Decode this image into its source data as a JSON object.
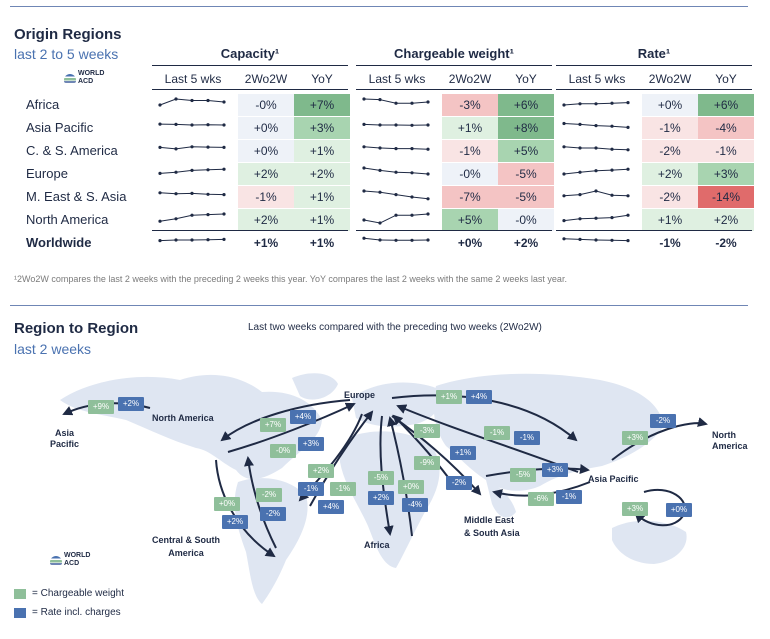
{
  "top": {
    "title": "Origin Regions",
    "subtitle": "last 2 to 5 weeks",
    "logo_text": [
      "WORLD",
      "ACD"
    ]
  },
  "chart_data": [
    {
      "type": "table",
      "groups": [
        "Capacity¹",
        "Chargeable weight¹",
        "Rate¹"
      ],
      "columns": [
        "Last 5 wks",
        "2Wo2W",
        "YoY"
      ],
      "rows": [
        {
          "region": "Africa",
          "capacity": {
            "spark": [
              3,
              5,
              4.5,
              4.5,
              4
            ],
            "wow": "-0%",
            "yoy": "+7%"
          },
          "weight": {
            "spark": [
              5,
              4.8,
              3.6,
              3.6,
              4
            ],
            "wow": "-3%",
            "yoy": "+6%"
          },
          "rate": {
            "spark": [
              3,
              3.4,
              3.4,
              3.6,
              3.8
            ],
            "wow": "+0%",
            "yoy": "+6%"
          }
        },
        {
          "region": "Asia Pacific",
          "capacity": {
            "spark": [
              4.3,
              4.2,
              4,
              4.1,
              4
            ],
            "wow": "+0%",
            "yoy": "+3%"
          },
          "weight": {
            "spark": [
              4.2,
              4,
              4,
              3.9,
              4
            ],
            "wow": "+1%",
            "yoy": "+8%"
          },
          "rate": {
            "spark": [
              4.5,
              4.2,
              3.8,
              3.6,
              3.2
            ],
            "wow": "-1%",
            "yoy": "-4%"
          }
        },
        {
          "region": "C. & S. America",
          "capacity": {
            "spark": [
              4.2,
              3.7,
              4.4,
              4.3,
              4.2
            ],
            "wow": "+0%",
            "yoy": "+1%"
          },
          "weight": {
            "spark": [
              4.4,
              4,
              3.8,
              3.8,
              3.6
            ],
            "wow": "-1%",
            "yoy": "+5%"
          },
          "rate": {
            "spark": [
              4.4,
              4,
              4,
              3.6,
              3.4
            ],
            "wow": "-2%",
            "yoy": "-1%"
          }
        },
        {
          "region": "Europe",
          "capacity": {
            "spark": [
              3.2,
              3.6,
              4.2,
              4.4,
              4.6
            ],
            "wow": "+2%",
            "yoy": "+2%"
          },
          "weight": {
            "spark": [
              5,
              4.2,
              3.6,
              3.4,
              3
            ],
            "wow": "-0%",
            "yoy": "-5%"
          },
          "rate": {
            "spark": [
              3,
              3.6,
              4.1,
              4.3,
              4.6
            ],
            "wow": "+2%",
            "yoy": "+3%"
          }
        },
        {
          "region": "M. East & S. Asia",
          "capacity": {
            "spark": [
              4.4,
              4.1,
              4.2,
              3.9,
              3.8
            ],
            "wow": "-1%",
            "yoy": "+1%"
          },
          "weight": {
            "spark": [
              5,
              4.6,
              3.8,
              3,
              2.4
            ],
            "wow": "-7%",
            "yoy": "-5%"
          },
          "rate": {
            "spark": [
              3.4,
              3.8,
              5,
              3.6,
              3.4
            ],
            "wow": "-2%",
            "yoy": "-14%"
          }
        },
        {
          "region": "North America",
          "capacity": {
            "spark": [
              2.6,
              3.4,
              4.6,
              4.8,
              5
            ],
            "wow": "+2%",
            "yoy": "+1%"
          },
          "weight": {
            "spark": [
              3,
              2,
              4.6,
              4.6,
              5
            ],
            "wow": "+5%",
            "yoy": "-0%"
          },
          "rate": {
            "spark": [
              2.8,
              3.4,
              3.6,
              3.8,
              4.6
            ],
            "wow": "+1%",
            "yoy": "+2%"
          }
        },
        {
          "region": "Worldwide",
          "capacity": {
            "spark": [
              3.8,
              4,
              4,
              4.1,
              4.2
            ],
            "wow": "+1%",
            "yoy": "+1%"
          },
          "weight": {
            "spark": [
              4.6,
              4,
              3.9,
              3.9,
              4
            ],
            "wow": "+0%",
            "yoy": "+2%"
          },
          "rate": {
            "spark": [
              4.4,
              4.2,
              4,
              3.9,
              3.8
            ],
            "wow": "-1%",
            "yoy": "-2%"
          }
        }
      ],
      "footnote": "¹2Wo2W compares the last 2 weeks with the preceding 2 weeks this year. YoY compares the last 2 weeks with the same 2 weeks last year."
    }
  ],
  "map": {
    "title": "Region to Region",
    "subtitle": "last 2 weeks",
    "caption": "Last two weeks compared with the preceding two weeks (2Wo2W)",
    "labels": {
      "asia_pacific_left": [
        "Asia",
        "Pacific"
      ],
      "north_america": "North America",
      "europe": "Europe",
      "north_america_right": [
        "North",
        "America"
      ],
      "asia_pacific": "Asia Pacific",
      "central_south_america": [
        "Central & South",
        "America"
      ],
      "africa": "Africa",
      "middle_east": [
        "Middle East",
        "& South Asia"
      ]
    },
    "badges": [
      {
        "id": "napac-w",
        "value": "+9%",
        "kind": "weight"
      },
      {
        "id": "napac-r",
        "value": "+2%",
        "kind": "rate"
      },
      {
        "id": "eurna-w",
        "value": "+7%",
        "kind": "weight"
      },
      {
        "id": "eurna-r",
        "value": "+4%",
        "kind": "rate"
      },
      {
        "id": "naeur-w",
        "value": "-0%",
        "kind": "weight"
      },
      {
        "id": "naeur-r",
        "value": "+3%",
        "kind": "rate"
      },
      {
        "id": "eurcsa-w",
        "value": "+2%",
        "kind": "weight"
      },
      {
        "id": "eurcsa-r",
        "value": "-1%",
        "kind": "rate"
      },
      {
        "id": "csaeur-w",
        "value": "-1%",
        "kind": "weight"
      },
      {
        "id": "csaeur-r",
        "value": "+4%",
        "kind": "rate"
      },
      {
        "id": "nacsa-w",
        "value": "+0%",
        "kind": "weight"
      },
      {
        "id": "nacsa-r",
        "value": "+2%",
        "kind": "rate"
      },
      {
        "id": "csana-w",
        "value": "-2%",
        "kind": "weight"
      },
      {
        "id": "csana-r",
        "value": "-2%",
        "kind": "rate"
      },
      {
        "id": "eurafr-w",
        "value": "-5%",
        "kind": "weight"
      },
      {
        "id": "eurafr-r",
        "value": "+2%",
        "kind": "rate"
      },
      {
        "id": "afreur-w",
        "value": "+0%",
        "kind": "weight"
      },
      {
        "id": "afreur-r",
        "value": "-4%",
        "kind": "rate"
      },
      {
        "id": "eurme-w",
        "value": "-3%",
        "kind": "weight"
      },
      {
        "id": "eurme-r",
        "value": "+1%",
        "kind": "rate"
      },
      {
        "id": "meeur-w",
        "value": "-9%",
        "kind": "weight"
      },
      {
        "id": "meeur-r",
        "value": "-2%",
        "kind": "rate"
      },
      {
        "id": "eurap-w",
        "value": "+1%",
        "kind": "weight"
      },
      {
        "id": "eurap-r",
        "value": "+4%",
        "kind": "rate"
      },
      {
        "id": "apeur-w",
        "value": "-1%",
        "kind": "weight"
      },
      {
        "id": "apeur-r",
        "value": "-1%",
        "kind": "rate"
      },
      {
        "id": "meap-w",
        "value": "-5%",
        "kind": "weight"
      },
      {
        "id": "meap-r",
        "value": "+3%",
        "kind": "rate"
      },
      {
        "id": "apme-w",
        "value": "-6%",
        "kind": "weight"
      },
      {
        "id": "apme-r",
        "value": "-1%",
        "kind": "rate"
      },
      {
        "id": "apna-w",
        "value": "+3%",
        "kind": "weight"
      },
      {
        "id": "apna-r",
        "value": "-2%",
        "kind": "rate"
      },
      {
        "id": "apap-w",
        "value": "+3%",
        "kind": "weight"
      },
      {
        "id": "apap-r",
        "value": "+0%",
        "kind": "rate"
      }
    ]
  },
  "legend": {
    "weight": "= Chargeable weight",
    "rate": "= Rate incl. charges",
    "weight_color": "#8fbf9a",
    "rate_color": "#4a72b0"
  }
}
